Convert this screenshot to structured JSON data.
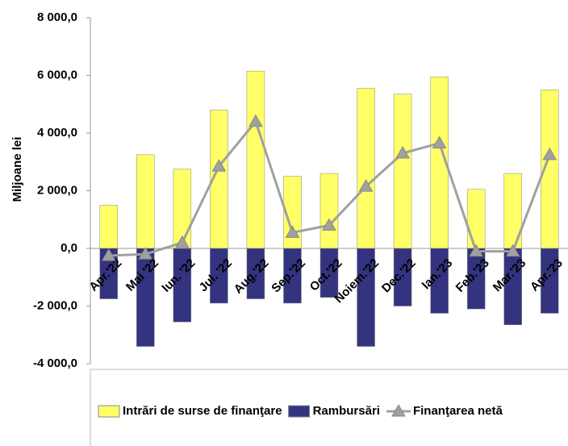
{
  "chart_data": {
    "type": "bar",
    "y_label": "Miljoane lei",
    "categories": [
      "Apr.'22",
      "Mai '22",
      "Iun. '22",
      "Jul. '22",
      "Aug.'22",
      "Sep.'22",
      "Oct.'22",
      "Noiem.'22",
      "Dec.'22",
      "Ian.'23",
      "Feb.'23",
      "Mar.'23",
      "Apr.'23"
    ],
    "series": [
      {
        "name": "Intrări de surse de finanţare",
        "type": "bar",
        "color": "#ffff66",
        "values": [
          1500,
          3250,
          2750,
          4800,
          6150,
          2500,
          2600,
          5550,
          5350,
          5950,
          2050,
          2600,
          5500
        ]
      },
      {
        "name": "Rambursări",
        "type": "bar",
        "color": "#33337f",
        "values": [
          -1750,
          -3400,
          -2550,
          -1900,
          -1750,
          -1900,
          -1700,
          -3400,
          -2000,
          -2250,
          -2100,
          -2650,
          -2250
        ]
      },
      {
        "name": "Finanţarea netă",
        "type": "line",
        "color": "#a0a0a0",
        "values": [
          -250,
          -200,
          200,
          2850,
          4400,
          550,
          800,
          2150,
          3300,
          3650,
          -100,
          -100,
          3250
        ]
      }
    ],
    "ylim": [
      -4000,
      8000
    ],
    "yticks": [
      {
        "value": -4000,
        "label": "-4 000,0"
      },
      {
        "value": -2000,
        "label": "-2 000,0"
      },
      {
        "value": 0,
        "label": "0,0"
      },
      {
        "value": 2000,
        "label": "2 000,0"
      },
      {
        "value": 4000,
        "label": "4 000,0"
      },
      {
        "value": 6000,
        "label": "6 000,0"
      },
      {
        "value": 8000,
        "label": "8 000,0"
      }
    ],
    "legend": "bottom"
  }
}
